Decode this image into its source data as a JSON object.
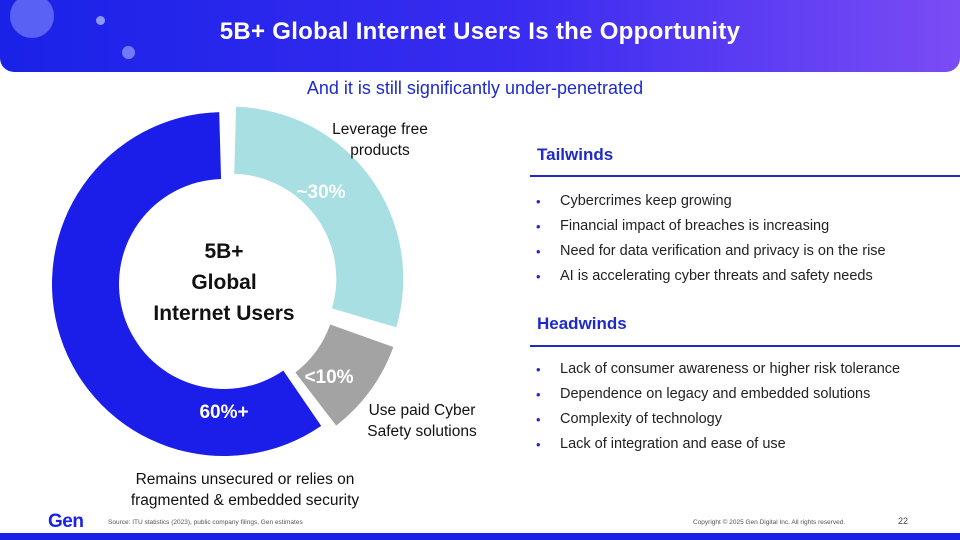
{
  "header": {
    "title": "5B+ Global Internet Users Is the Opportunity"
  },
  "subtitle": "And it is still significantly under-penetrated",
  "chart_data": {
    "type": "pie",
    "donut": true,
    "center_label": [
      "5B+",
      "Global",
      "Internet Users"
    ],
    "slices": [
      {
        "value": 30,
        "label": "~30%",
        "annotation": "Leverage free products",
        "color": "#a8dfe3"
      },
      {
        "value": 10,
        "label": "<10%",
        "annotation": "Use paid Cyber Safety solutions",
        "color": "#a3a3a3"
      },
      {
        "value": 60,
        "label": "60%+",
        "annotation": "Remains unsecured or relies on fragmented & embedded security",
        "color": "#1a1ee8"
      }
    ]
  },
  "labels": {
    "free": [
      "Leverage free",
      "products"
    ],
    "paid": [
      "Use paid Cyber",
      "Safety solutions"
    ],
    "unsecured": [
      "Remains unsecured or relies on",
      "fragmented & embedded security"
    ]
  },
  "tailwinds": {
    "heading": "Tailwinds",
    "items": [
      "Cybercrimes keep growing",
      "Financial impact of breaches is increasing",
      "Need for data verification and privacy is on the rise",
      "AI is accelerating cyber threats and safety needs"
    ]
  },
  "headwinds": {
    "heading": "Headwinds",
    "items": [
      "Lack of consumer awareness or higher risk tolerance",
      "Dependence on legacy and embedded solutions",
      "Complexity of technology",
      "Lack of integration and ease of use"
    ]
  },
  "footer": {
    "logo": "Gen",
    "source": "Source: ITU statistics (2023), public company filings, Gen estimates",
    "copyright": "Copyright © 2025 Gen Digital Inc. All rights reserved.",
    "page": "22"
  },
  "colors": {
    "brand": "#1a22e8",
    "accent_text": "#1e2bc8"
  }
}
